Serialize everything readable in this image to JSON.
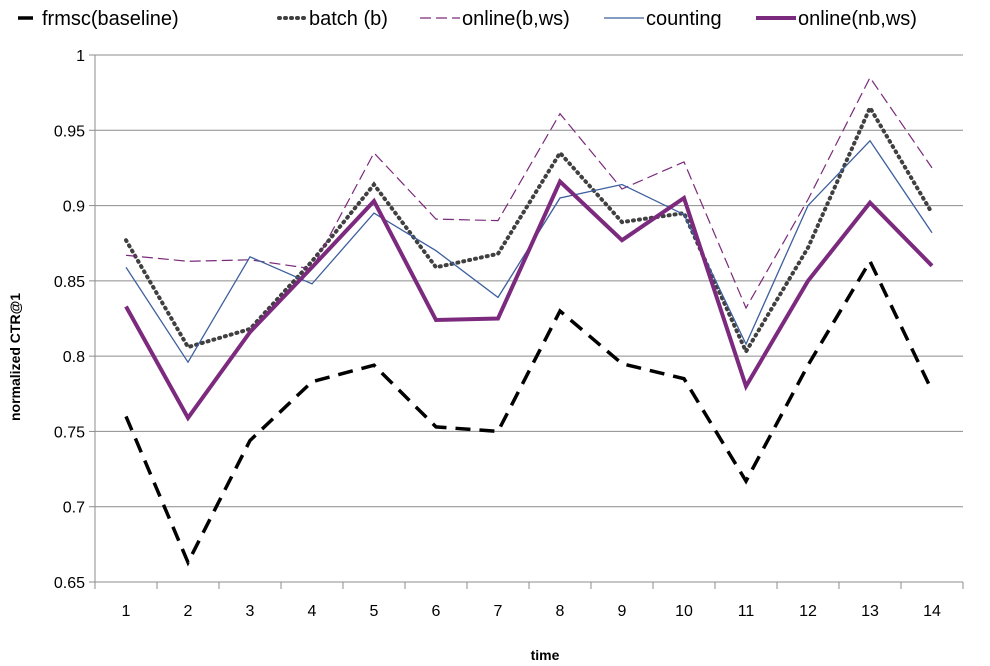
{
  "chart_data": {
    "type": "line",
    "title": "",
    "xlabel": "time",
    "ylabel": "normalized CTR@1",
    "ylim": [
      0.65,
      1
    ],
    "y_ticks": [
      "0.65",
      "0.7",
      "0.75",
      "0.8",
      "0.85",
      "0.9",
      "0.95",
      "1"
    ],
    "x": [
      "1",
      "2",
      "3",
      "4",
      "5",
      "6",
      "7",
      "8",
      "9",
      "10",
      "11",
      "12",
      "13",
      "14"
    ],
    "grid": "horizontal",
    "legend_position": "top",
    "series": [
      {
        "name": "frmsc(baseline)",
        "style": "dashed",
        "color": "#000000",
        "values": [
          0.76,
          0.663,
          0.744,
          0.783,
          0.794,
          0.753,
          0.75,
          0.83,
          0.795,
          0.785,
          0.717,
          0.794,
          0.863,
          0.777
        ]
      },
      {
        "name": "batch (b)",
        "style": "dotted",
        "color": "#404040",
        "values": [
          0.877,
          0.806,
          0.818,
          0.863,
          0.914,
          0.859,
          0.868,
          0.935,
          0.889,
          0.895,
          0.803,
          0.872,
          0.965,
          0.895
        ]
      },
      {
        "name": "online(b,ws)",
        "style": "dashed-thin",
        "color": "#7a2a7a",
        "values": [
          0.867,
          0.863,
          0.864,
          0.858,
          0.935,
          0.891,
          0.89,
          0.961,
          0.911,
          0.929,
          0.832,
          0.904,
          0.985,
          0.925
        ]
      },
      {
        "name": "counting",
        "style": "solid-thin",
        "color": "#3d5f9e",
        "values": [
          0.859,
          0.796,
          0.866,
          0.848,
          0.895,
          0.87,
          0.839,
          0.905,
          0.914,
          0.894,
          0.808,
          0.9,
          0.943,
          0.882
        ]
      },
      {
        "name": "online(nb,ws)",
        "style": "solid-thick",
        "color": "#7b2a7e",
        "values": [
          0.833,
          0.759,
          0.816,
          0.859,
          0.903,
          0.824,
          0.825,
          0.916,
          0.877,
          0.905,
          0.78,
          0.85,
          0.902,
          0.86
        ]
      }
    ]
  }
}
